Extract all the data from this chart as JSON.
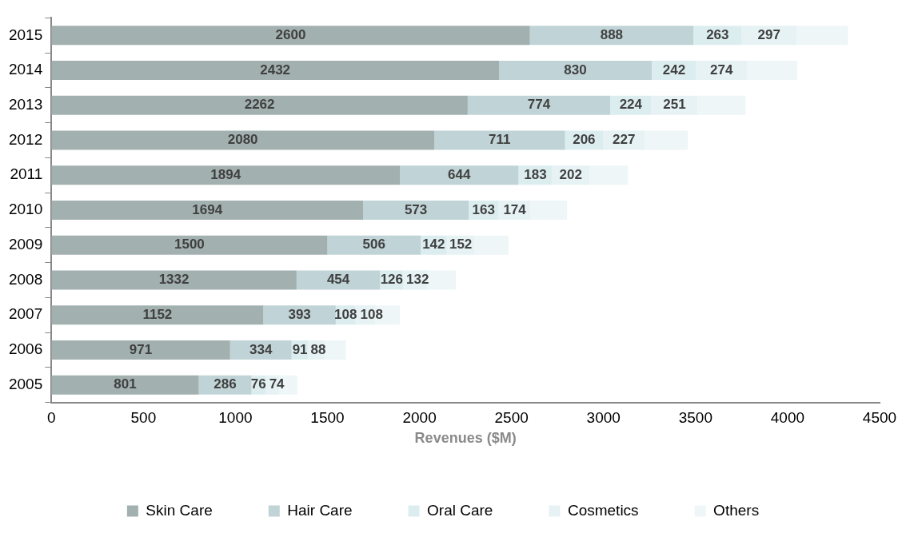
{
  "chart_data": {
    "type": "bar",
    "orientation": "horizontal",
    "stacked": true,
    "xlabel": "Revenues ($M)",
    "categories": [
      "2015",
      "2014",
      "2013",
      "2012",
      "2011",
      "2010",
      "2009",
      "2008",
      "2007",
      "2006",
      "2005"
    ],
    "xlim": [
      0,
      4500
    ],
    "xticks": [
      0,
      500,
      1000,
      1500,
      2000,
      2500,
      3000,
      3500,
      4000,
      4500
    ],
    "grid": false,
    "legend": "bottom",
    "series": [
      {
        "name": "Skin Care",
        "color": "#a3b0b0",
        "values": [
          2600,
          2432,
          2262,
          2080,
          1894,
          1694,
          1500,
          1332,
          1152,
          971,
          801
        ],
        "value_labels": [
          "2600",
          "2432",
          "2262",
          "2080",
          "1894",
          "1694",
          "1500",
          "1332",
          "1152",
          "971",
          "801"
        ]
      },
      {
        "name": "Hair Care",
        "color": "#c0d3d6",
        "values": [
          888,
          830,
          774,
          711,
          644,
          573,
          506,
          454,
          393,
          334,
          286
        ],
        "value_labels": [
          "888",
          "830",
          "774",
          "711",
          "644",
          "573",
          "506",
          "454",
          "393",
          "334",
          "286"
        ]
      },
      {
        "name": "Oral Care",
        "color": "#dcedf0",
        "values": [
          263,
          242,
          224,
          206,
          183,
          163,
          142,
          126,
          108,
          91,
          76
        ],
        "value_labels": [
          "263",
          "242",
          "224",
          "206",
          "183",
          "163",
          "142",
          "126",
          "108",
          "91",
          "76"
        ]
      },
      {
        "name": "Cosmetics",
        "color": "#e6f2f4",
        "values": [
          297,
          274,
          251,
          227,
          202,
          174,
          152,
          132,
          108,
          88,
          74
        ],
        "value_labels": [
          "297",
          "274",
          "251",
          "227",
          "202",
          "174",
          "152",
          "132",
          "108",
          "88",
          "74"
        ]
      },
      {
        "name": "Others",
        "color": "#eef6f8",
        "values": [
          280,
          275,
          260,
          234,
          209,
          198,
          184,
          154,
          133,
          116,
          99
        ]
      }
    ]
  }
}
